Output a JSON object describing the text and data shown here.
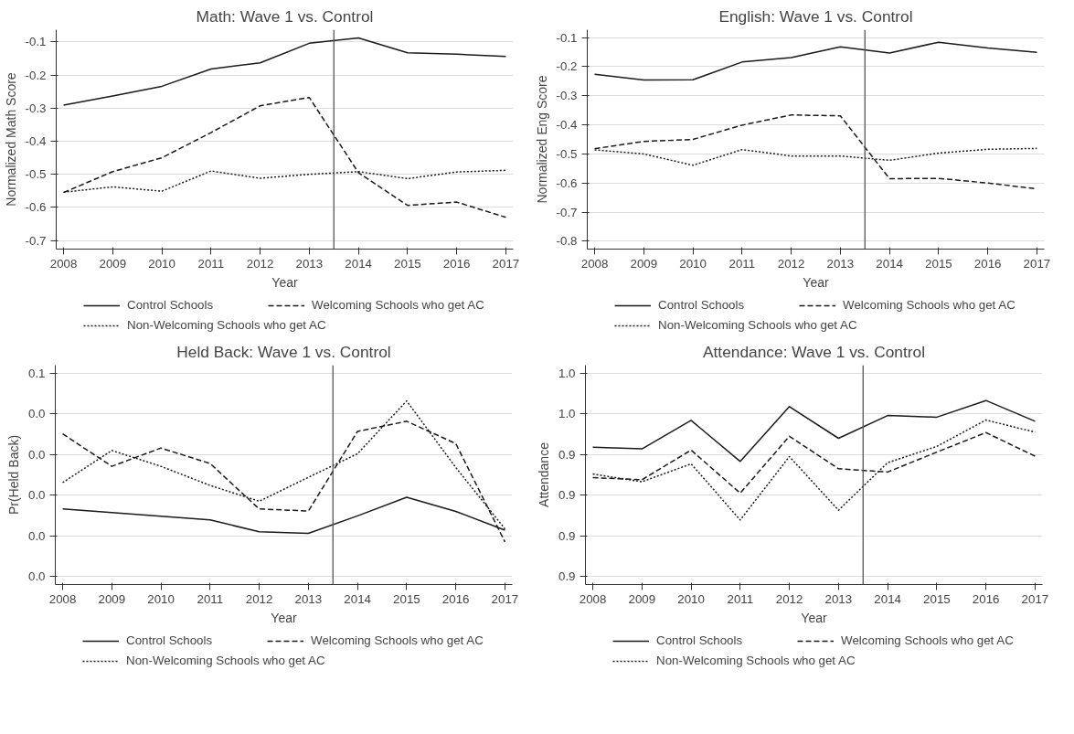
{
  "chart_data": [
    {
      "type": "line",
      "title": "Math: Wave 1 vs. Control",
      "xlabel": "Year",
      "ylabel": "Normalized Math Score",
      "x": [
        2008,
        2009,
        2010,
        2011,
        2012,
        2013,
        2014,
        2015,
        2016,
        2017
      ],
      "xlim": [
        2007.85,
        2017.15
      ],
      "xticks": [
        2008,
        2009,
        2010,
        2011,
        2012,
        2013,
        2014,
        2015,
        2016,
        2017
      ],
      "ylim": [
        -0.726,
        -0.063
      ],
      "yticks": [
        {
          "value": -0.1,
          "label": "-0.1"
        },
        {
          "value": -0.2,
          "label": "-0.2"
        },
        {
          "value": -0.3,
          "label": "-0.3"
        },
        {
          "value": -0.4,
          "label": "-0.4"
        },
        {
          "value": -0.5,
          "label": "-0.5"
        },
        {
          "value": -0.6,
          "label": "-0.6"
        },
        {
          "value": -0.7,
          "label": "-0.7"
        }
      ],
      "grid": "y",
      "legend": "bottom",
      "marker": "none",
      "ref_lines": [
        {
          "axis": "x",
          "value": 2013.5,
          "color": "#555555",
          "line_style": "solid"
        }
      ],
      "series": [
        {
          "name": "Control Schools",
          "color": "#1a1a1a",
          "line_style": "solid",
          "values": [
            -0.291,
            -0.263,
            -0.234,
            -0.182,
            -0.163,
            -0.104,
            -0.088,
            -0.133,
            -0.137,
            -0.144
          ]
        },
        {
          "name": "Welcoming Schools who get AC",
          "color": "#1a1a1a",
          "line_style": "dashed",
          "values": [
            -0.555,
            -0.492,
            -0.45,
            -0.374,
            -0.293,
            -0.268,
            -0.495,
            -0.594,
            -0.584,
            -0.63
          ]
        },
        {
          "name": "Non-Welcoming Schools who get AC",
          "color": "#1a1a1a",
          "line_style": "dotted",
          "values": [
            -0.554,
            -0.538,
            -0.551,
            -0.49,
            -0.512,
            -0.5,
            -0.492,
            -0.513,
            -0.493,
            -0.488
          ]
        }
      ]
    },
    {
      "type": "line",
      "title": "English: Wave 1 vs. Control",
      "xlabel": "Year",
      "ylabel": "Normalized Eng Score",
      "x": [
        2008,
        2009,
        2010,
        2011,
        2012,
        2013,
        2014,
        2015,
        2016,
        2017
      ],
      "xlim": [
        2007.85,
        2017.15
      ],
      "xticks": [
        2008,
        2009,
        2010,
        2011,
        2012,
        2013,
        2014,
        2015,
        2016,
        2017
      ],
      "ylim": [
        -0.827,
        -0.073
      ],
      "yticks": [
        {
          "value": -0.1,
          "label": "-0.1"
        },
        {
          "value": -0.2,
          "label": "-0.2"
        },
        {
          "value": -0.3,
          "label": "-0.3"
        },
        {
          "value": -0.4,
          "label": "-0.4"
        },
        {
          "value": -0.5,
          "label": "-0.5"
        },
        {
          "value": -0.6,
          "label": "-0.6"
        },
        {
          "value": -0.7,
          "label": "-0.7"
        },
        {
          "value": -0.8,
          "label": "-0.8"
        }
      ],
      "grid": "y",
      "legend": "bottom",
      "marker": "none",
      "ref_lines": [
        {
          "axis": "x",
          "value": 2013.5,
          "color": "#555555",
          "line_style": "solid"
        }
      ],
      "series": [
        {
          "name": "Control Schools",
          "color": "#1a1a1a",
          "line_style": "solid",
          "values": [
            -0.226,
            -0.246,
            -0.245,
            -0.184,
            -0.169,
            -0.132,
            -0.153,
            -0.116,
            -0.136,
            -0.151
          ]
        },
        {
          "name": "Welcoming Schools who get AC",
          "color": "#1a1a1a",
          "line_style": "dashed",
          "values": [
            -0.482,
            -0.457,
            -0.45,
            -0.401,
            -0.366,
            -0.369,
            -0.585,
            -0.584,
            -0.6,
            -0.62
          ]
        },
        {
          "name": "Non-Welcoming Schools who get AC",
          "color": "#1a1a1a",
          "line_style": "dotted",
          "values": [
            -0.486,
            -0.5,
            -0.539,
            -0.485,
            -0.507,
            -0.507,
            -0.522,
            -0.497,
            -0.484,
            -0.481
          ]
        }
      ]
    },
    {
      "type": "line",
      "title": "Held Back: Wave 1 vs. Control",
      "xlabel": "Year",
      "ylabel": "Pr(Held Back)",
      "x": [
        2008,
        2009,
        2010,
        2011,
        2012,
        2013,
        2014,
        2015,
        2016,
        2017
      ],
      "xlim": [
        2007.85,
        2017.15
      ],
      "xticks": [
        2008,
        2009,
        2010,
        2011,
        2012,
        2013,
        2014,
        2015,
        2016,
        2017
      ],
      "ylim": [
        -0.002,
        0.052
      ],
      "yticks": [
        {
          "value": 0.0,
          "label": "0.0"
        },
        {
          "value": 0.01,
          "label": "0.0"
        },
        {
          "value": 0.02,
          "label": "0.0"
        },
        {
          "value": 0.03,
          "label": "0.0"
        },
        {
          "value": 0.04,
          "label": "0.0"
        },
        {
          "value": 0.05,
          "label": "0.1"
        }
      ],
      "grid": "y",
      "legend": "bottom",
      "marker": "none",
      "ref_lines": [
        {
          "axis": "x",
          "value": 2013.5,
          "color": "#555555",
          "line_style": "solid"
        }
      ],
      "series": [
        {
          "name": "Control Schools",
          "color": "#1a1a1a",
          "line_style": "solid",
          "values": [
            0.0166,
            0.0157,
            0.0148,
            0.0139,
            0.011,
            0.0106,
            0.0149,
            0.0195,
            0.016,
            0.0114
          ]
        },
        {
          "name": "Welcoming Schools who get AC",
          "color": "#1a1a1a",
          "line_style": "dashed",
          "values": [
            0.0351,
            0.0271,
            0.0316,
            0.0278,
            0.0166,
            0.0161,
            0.0357,
            0.0382,
            0.0327,
            0.0085
          ]
        },
        {
          "name": "Non-Welcoming Schools who get AC",
          "color": "#1a1a1a",
          "line_style": "dotted",
          "values": [
            0.0231,
            0.031,
            0.0271,
            0.0224,
            0.0185,
            0.0244,
            0.0302,
            0.0432,
            0.0268,
            0.0117
          ]
        }
      ]
    },
    {
      "type": "line",
      "title": "Attendance: Wave 1 vs. Control",
      "xlabel": "Year",
      "ylabel": "Attendance",
      "x": [
        2008,
        2009,
        2010,
        2011,
        2012,
        2013,
        2014,
        2015,
        2016,
        2017
      ],
      "xlim": [
        2007.85,
        2017.15
      ],
      "xticks": [
        2008,
        2009,
        2010,
        2011,
        2012,
        2013,
        2014,
        2015,
        2016,
        2017
      ],
      "ylim": [
        0.918,
        0.972
      ],
      "yticks": [
        {
          "value": 0.92,
          "label": "0.9"
        },
        {
          "value": 0.93,
          "label": "0.9"
        },
        {
          "value": 0.94,
          "label": "0.9"
        },
        {
          "value": 0.95,
          "label": "0.9"
        },
        {
          "value": 0.96,
          "label": "1.0"
        },
        {
          "value": 0.97,
          "label": "1.0"
        }
      ],
      "grid": "y",
      "legend": "bottom",
      "marker": "none",
      "ref_lines": [
        {
          "axis": "x",
          "value": 2013.5,
          "color": "#555555",
          "line_style": "solid"
        }
      ],
      "series": [
        {
          "name": "Control Schools",
          "color": "#1a1a1a",
          "line_style": "solid",
          "values": [
            0.9518,
            0.9514,
            0.9584,
            0.9483,
            0.9618,
            0.954,
            0.9596,
            0.9592,
            0.9633,
            0.9582
          ]
        },
        {
          "name": "Welcoming Schools who get AC",
          "color": "#1a1a1a",
          "line_style": "dashed",
          "values": [
            0.9443,
            0.9438,
            0.9511,
            0.9405,
            0.9545,
            0.9465,
            0.9457,
            0.9506,
            0.9554,
            0.9496
          ]
        },
        {
          "name": "Non-Welcoming Schools who get AC",
          "color": "#1a1a1a",
          "line_style": "dotted",
          "values": [
            0.9452,
            0.9433,
            0.9477,
            0.9339,
            0.9495,
            0.9363,
            0.948,
            0.952,
            0.9585,
            0.9555
          ]
        }
      ]
    }
  ]
}
